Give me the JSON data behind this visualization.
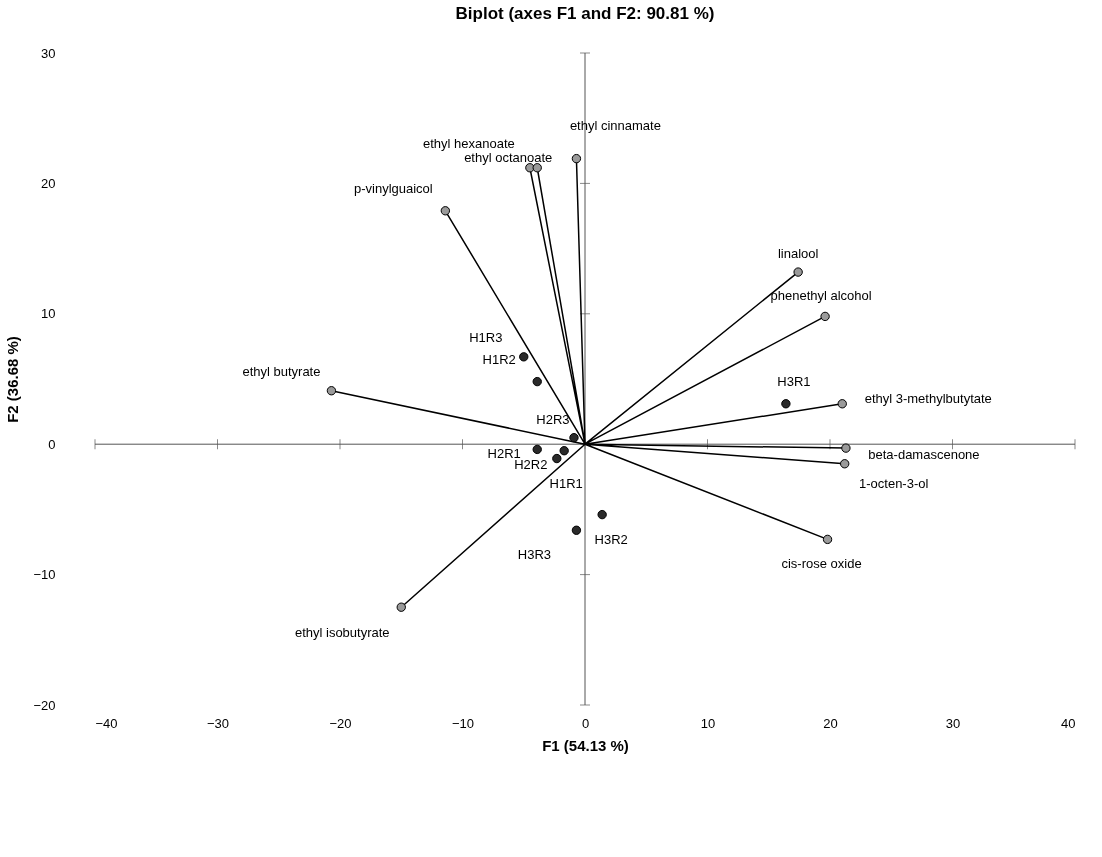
{
  "chart_data": {
    "type": "scatter",
    "title": "Biplot (axes F1 and F2: 90.81 %)",
    "xlabel": "F1 (54.13 %)",
    "ylabel": "F2 (36.68 %)",
    "xlim": [
      -40,
      40
    ],
    "ylim": [
      -20,
      30
    ],
    "xticks": [
      -40,
      -30,
      -20,
      -10,
      0,
      10,
      20,
      30,
      40
    ],
    "yticks": [
      -20,
      -10,
      0,
      10,
      20,
      30
    ],
    "marker": "circle",
    "line_style": "solid",
    "series": [
      {
        "type": "line",
        "marker": "none",
        "color": "#000000",
        "x": [
          0,
          -0.7,
          null,
          0,
          -4.5,
          null,
          0,
          -3.9,
          null,
          0,
          -11.4,
          null,
          0,
          -20.7,
          null,
          0,
          -15.0,
          null,
          0,
          17.4,
          null,
          0,
          19.6,
          null,
          0,
          21.0,
          null,
          0,
          21.3,
          null,
          0,
          21.2,
          null,
          0,
          19.8
        ],
        "values": [
          0,
          21.9,
          null,
          0,
          21.2,
          null,
          0,
          21.2,
          null,
          0,
          17.9,
          null,
          0,
          4.1,
          null,
          0,
          -12.5,
          null,
          0,
          13.2,
          null,
          0,
          9.8,
          null,
          0,
          3.1,
          null,
          0,
          -0.3,
          null,
          0,
          -1.5,
          null,
          0,
          -7.3
        ]
      },
      {
        "color": "#9a9a9a",
        "x": [
          -0.7,
          -4.5,
          -3.9,
          -11.4,
          -20.7,
          -15.0,
          17.4,
          19.6,
          21.0,
          21.3,
          21.2,
          19.8
        ],
        "values": [
          21.9,
          21.2,
          21.2,
          17.9,
          4.1,
          -12.5,
          13.2,
          9.8,
          3.1,
          -0.3,
          -1.5,
          -7.3
        ]
      },
      {
        "color": "#2a2a2a",
        "x": [
          -5.0,
          -3.9,
          -0.9,
          -3.9,
          -2.3,
          -1.7,
          16.4,
          1.4,
          -0.7
        ],
        "values": [
          6.7,
          4.8,
          0.5,
          -0.4,
          -1.1,
          -0.5,
          3.1,
          -5.4,
          -6.6
        ]
      }
    ],
    "annotations": [
      {
        "text": "ethyl cinnamate",
        "x": -0.7,
        "y": 21.9
      },
      {
        "text": "ethyl hexanoate",
        "x": -4.5,
        "y": 21.2
      },
      {
        "text": "ethyl octanoate",
        "x": -3.9,
        "y": 21.2
      },
      {
        "text": "p-vinylguaicol",
        "x": -11.4,
        "y": 17.9
      },
      {
        "text": "ethyl butyrate",
        "x": -20.7,
        "y": 4.1
      },
      {
        "text": "ethyl isobutyrate",
        "x": -15.0,
        "y": -12.5
      },
      {
        "text": "linalool",
        "x": 17.4,
        "y": 13.2
      },
      {
        "text": "phenethyl alcohol",
        "x": 19.6,
        "y": 9.8
      },
      {
        "text": "ethyl 3-methylbutytate",
        "x": 21.0,
        "y": 3.1
      },
      {
        "text": "beta-damascenone",
        "x": 21.3,
        "y": -0.3
      },
      {
        "text": "1-octen-3-ol",
        "x": 21.2,
        "y": -1.5
      },
      {
        "text": "cis-rose oxide",
        "x": 19.8,
        "y": -7.3
      },
      {
        "text": "H1R3",
        "x": -5.0,
        "y": 6.7
      },
      {
        "text": "H1R2",
        "x": -3.9,
        "y": 4.8
      },
      {
        "text": "H2R3",
        "x": -0.9,
        "y": 0.5
      },
      {
        "text": "H2R1",
        "x": -3.9,
        "y": -0.4
      },
      {
        "text": "H2R2",
        "x": -2.3,
        "y": -1.1
      },
      {
        "text": "H1R1",
        "x": -1.7,
        "y": -0.5
      },
      {
        "text": "H3R1",
        "x": 16.4,
        "y": 3.1
      },
      {
        "text": "H3R2",
        "x": 1.4,
        "y": -5.4
      },
      {
        "text": "H3R3",
        "x": -0.7,
        "y": -6.6
      }
    ]
  }
}
